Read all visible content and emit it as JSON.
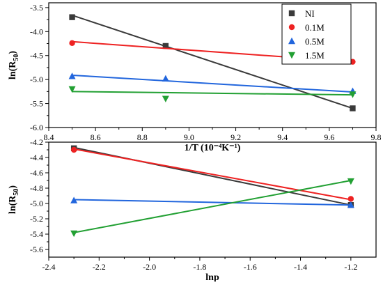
{
  "chart_data": [
    {
      "type": "scatter",
      "xlabel": "1/T (10⁻⁴K⁻¹)",
      "ylabel_base": "ln(R",
      "ylabel_sub": "50",
      "ylabel_end": ")",
      "xlim": [
        8.4,
        9.8
      ],
      "ylim": [
        -6.0,
        -3.4
      ],
      "xticks": [
        8.4,
        8.6,
        8.8,
        9.0,
        9.2,
        9.4,
        9.6,
        9.8
      ],
      "xtick_labels": [
        "8.4",
        "8.6",
        "8.8",
        "9.0",
        "9.2",
        "9.4",
        "9.6",
        "9.8"
      ],
      "yticks": [
        -6.0,
        -5.5,
        -5.0,
        -4.5,
        -4.0,
        -3.5
      ],
      "ytick_labels": [
        "-6.0",
        "-5.5",
        "-5.0",
        "-4.5",
        "-4.0",
        "-3.5"
      ],
      "legend_position": "top-right",
      "series": [
        {
          "name": "NI",
          "color": "#3a3a3a",
          "marker": "square",
          "x": [
            8.5,
            8.9,
            9.7
          ],
          "y": [
            -3.7,
            -4.3,
            -5.6
          ],
          "fit": {
            "x": [
              8.5,
              9.7
            ],
            "y": [
              -3.66,
              -5.6
            ]
          }
        },
        {
          "name": "0.1M",
          "color": "#ee2222",
          "marker": "circle",
          "x": [
            8.5,
            9.7
          ],
          "y": [
            -4.24,
            -4.63
          ],
          "fit": {
            "x": [
              8.5,
              9.7
            ],
            "y": [
              -4.21,
              -4.63
            ]
          }
        },
        {
          "name": "0.5M",
          "color": "#2266dd",
          "marker": "triangle-up",
          "x": [
            8.5,
            8.9,
            9.7
          ],
          "y": [
            -4.93,
            -4.98,
            -5.24
          ],
          "fit": {
            "x": [
              8.5,
              9.7
            ],
            "y": [
              -4.91,
              -5.26
            ]
          }
        },
        {
          "name": "1.5M",
          "color": "#22a033",
          "marker": "triangle-down",
          "x": [
            8.5,
            8.9,
            9.7
          ],
          "y": [
            -5.2,
            -5.4,
            -5.31
          ],
          "fit": {
            "x": [
              8.5,
              9.7
            ],
            "y": [
              -5.25,
              -5.32
            ]
          }
        }
      ]
    },
    {
      "type": "scatter",
      "xlabel": "lnp",
      "ylabel_base": "ln(R",
      "ylabel_sub": "50",
      "ylabel_end": ")",
      "xlim": [
        -2.4,
        -1.1
      ],
      "ylim": [
        -5.7,
        -4.2
      ],
      "xticks": [
        -2.4,
        -2.2,
        -2.0,
        -1.8,
        -1.6,
        -1.4,
        -1.2
      ],
      "xtick_labels": [
        "-2.4",
        "-2.2",
        "-2.0",
        "-1.8",
        "-1.6",
        "-1.4",
        "-1.2"
      ],
      "yticks": [
        -5.6,
        -5.4,
        -5.2,
        -5.0,
        -4.8,
        -4.6,
        -4.4,
        -4.2
      ],
      "ytick_labels": [
        "-5.6",
        "-5.4",
        "-5.2",
        "-5.0",
        "-4.8",
        "-4.6",
        "-4.4",
        "-4.2"
      ],
      "series": [
        {
          "name": "NI",
          "color": "#3a3a3a",
          "marker": "square",
          "x": [
            -2.3,
            -1.2
          ],
          "y": [
            -4.28,
            -5.02
          ],
          "fit": {
            "x": [
              -2.3,
              -1.2
            ],
            "y": [
              -4.27,
              -5.02
            ]
          }
        },
        {
          "name": "0.1M",
          "color": "#ee2222",
          "marker": "circle",
          "x": [
            -2.3,
            -1.2
          ],
          "y": [
            -4.3,
            -4.94
          ],
          "fit": {
            "x": [
              -2.3,
              -1.2
            ],
            "y": [
              -4.29,
              -4.95
            ]
          }
        },
        {
          "name": "0.5M",
          "color": "#2266dd",
          "marker": "triangle-up",
          "x": [
            -2.3,
            -1.2
          ],
          "y": [
            -4.96,
            -5.02
          ],
          "fit": {
            "x": [
              -2.3,
              -1.2
            ],
            "y": [
              -4.95,
              -5.02
            ]
          }
        },
        {
          "name": "1.5M",
          "color": "#22a033",
          "marker": "triangle-down",
          "x": [
            -2.3,
            -1.2
          ],
          "y": [
            -5.39,
            -4.71
          ],
          "fit": {
            "x": [
              -2.3,
              -1.2
            ],
            "y": [
              -5.38,
              -4.7
            ]
          }
        }
      ]
    }
  ]
}
